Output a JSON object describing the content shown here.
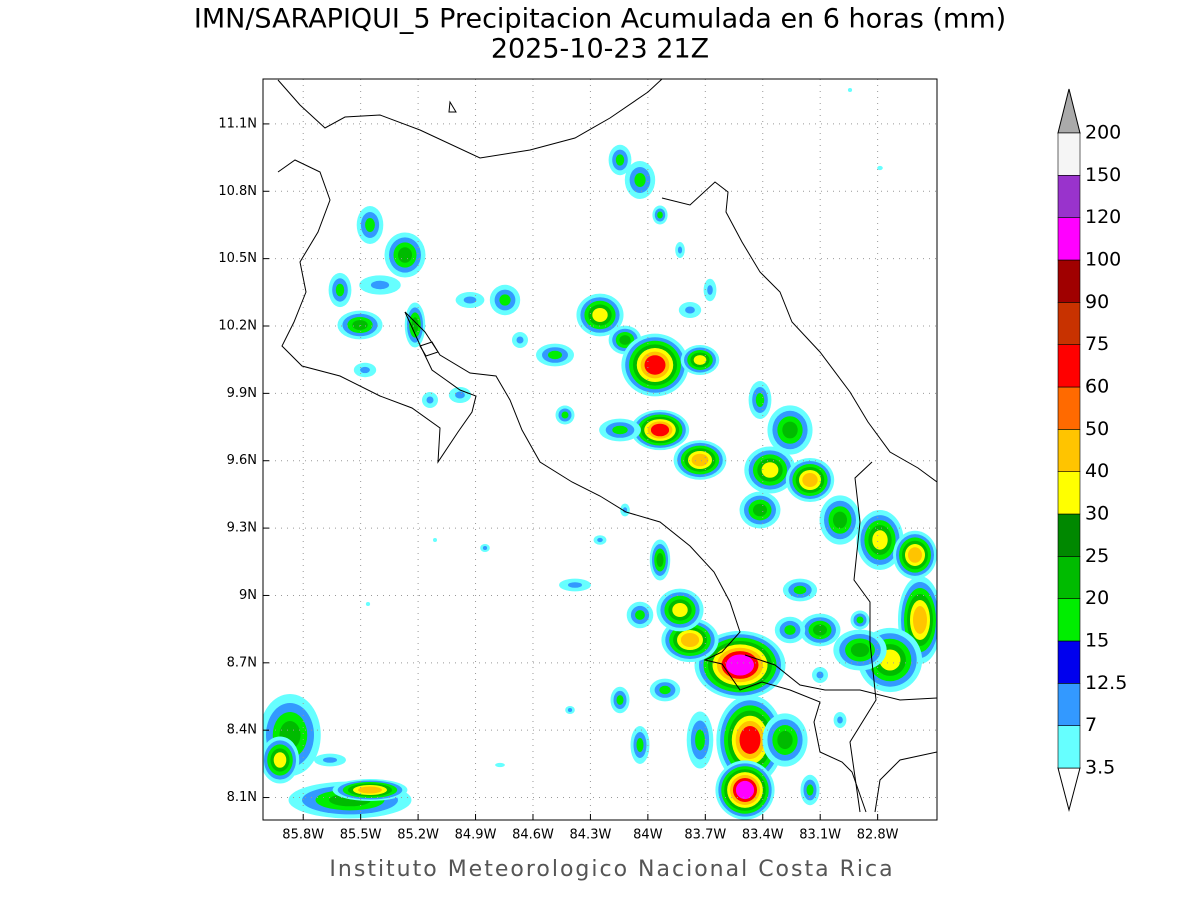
{
  "title": "IMN/SARAPIQUI_5 Precipitacion Acumulada en 6 horas (mm)",
  "subtitle": "2025-10-23 21Z",
  "footer": "Instituto Meteorologico Nacional Costa Rica",
  "map": {
    "lonlim": [
      -86.01,
      -82.49
    ],
    "latlim": [
      8.0,
      11.3
    ],
    "lon_ticks": [
      {
        "value": -85.8,
        "label": "85.8W"
      },
      {
        "value": -85.5,
        "label": "85.5W"
      },
      {
        "value": -85.2,
        "label": "85.2W"
      },
      {
        "value": -84.9,
        "label": "84.9W"
      },
      {
        "value": -84.6,
        "label": "84.6W"
      },
      {
        "value": -84.3,
        "label": "84.3W"
      },
      {
        "value": -84.0,
        "label": "84W"
      },
      {
        "value": -83.7,
        "label": "83.7W"
      },
      {
        "value": -83.4,
        "label": "83.4W"
      },
      {
        "value": -83.1,
        "label": "83.1W"
      },
      {
        "value": -82.8,
        "label": "82.8W"
      }
    ],
    "lat_ticks": [
      {
        "value": 11.1,
        "label": "11.1N"
      },
      {
        "value": 10.8,
        "label": "10.8N"
      },
      {
        "value": 10.5,
        "label": "10.5N"
      },
      {
        "value": 10.2,
        "label": "10.2N"
      },
      {
        "value": 9.9,
        "label": "9.9N"
      },
      {
        "value": 9.6,
        "label": "9.6N"
      },
      {
        "value": 9.3,
        "label": "9.3N"
      },
      {
        "value": 9.0,
        "label": "9N"
      },
      {
        "value": 8.7,
        "label": "8.7N"
      },
      {
        "value": 8.4,
        "label": "8.4N"
      },
      {
        "value": 8.1,
        "label": "8.1N"
      }
    ],
    "grid": true
  },
  "colorbar": {
    "levels": [
      3.5,
      7,
      12.5,
      15,
      20,
      25,
      30,
      40,
      50,
      60,
      75,
      90,
      100,
      120,
      150,
      200
    ],
    "colors": [
      "#66ffff",
      "#3399ff",
      "#0000ee",
      "#00ee00",
      "#00bb00",
      "#008800",
      "#ffff00",
      "#ffc400",
      "#ff6a00",
      "#ff0000",
      "#c83200",
      "#a00000",
      "#ff00ff",
      "#9933cc",
      "#f5f5f5"
    ],
    "under_color": "#ffffff",
    "over_color": "#aaaaaa"
  }
}
